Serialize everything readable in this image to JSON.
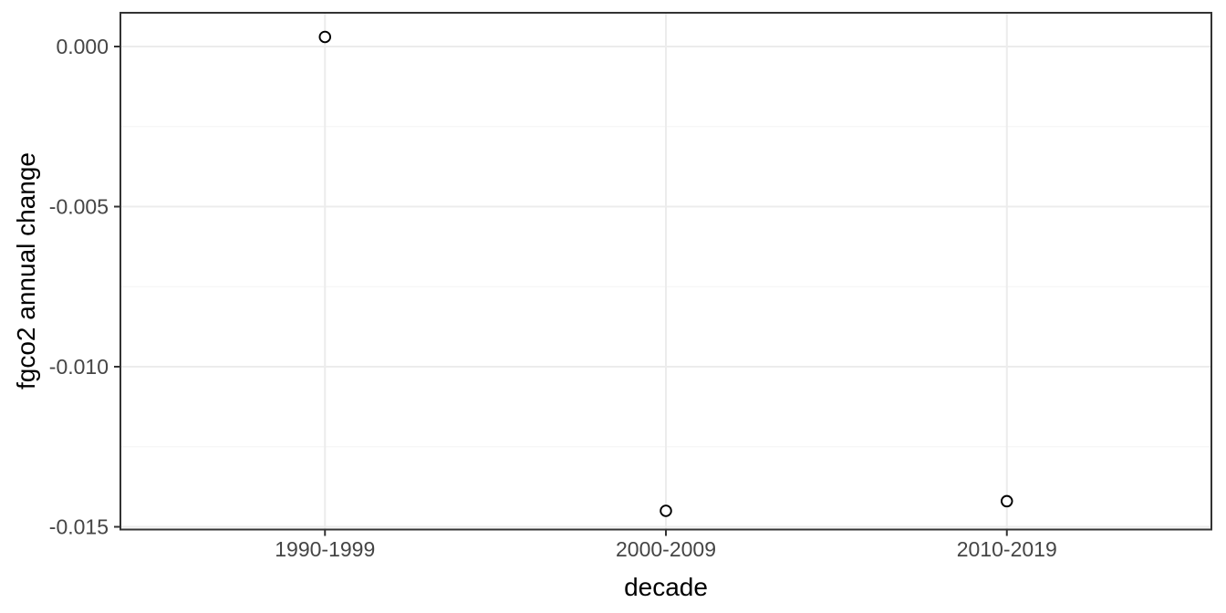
{
  "chart_data": {
    "type": "scatter",
    "title": "",
    "xlabel": "decade",
    "ylabel": "fgco2 annual change",
    "categories": [
      "1990-1999",
      "2000-2009",
      "2010-2019"
    ],
    "values": [
      0.0003,
      -0.0145,
      -0.0142
    ],
    "ytick_values": [
      0.0,
      -0.005,
      -0.01,
      -0.015
    ],
    "ytick_labels": [
      "0.000",
      "-0.005",
      "-0.010",
      "-0.015"
    ],
    "ylim": [
      -0.015085,
      0.001054
    ],
    "grid": "horizontal major+minor, vertical major per category",
    "legend": "none",
    "marker": "open-circle"
  },
  "style": {
    "page_background": "#ffffff",
    "panel_background": "#ffffff",
    "panel_border": "#333333",
    "grid_major": "#ececec",
    "grid_minor": "#f4f4f4",
    "tick_mark": "#333333",
    "tick_label_color": "#454545",
    "axis_title_color": "#000000",
    "point_stroke": "#000000",
    "point_fill": "#ffffff"
  }
}
